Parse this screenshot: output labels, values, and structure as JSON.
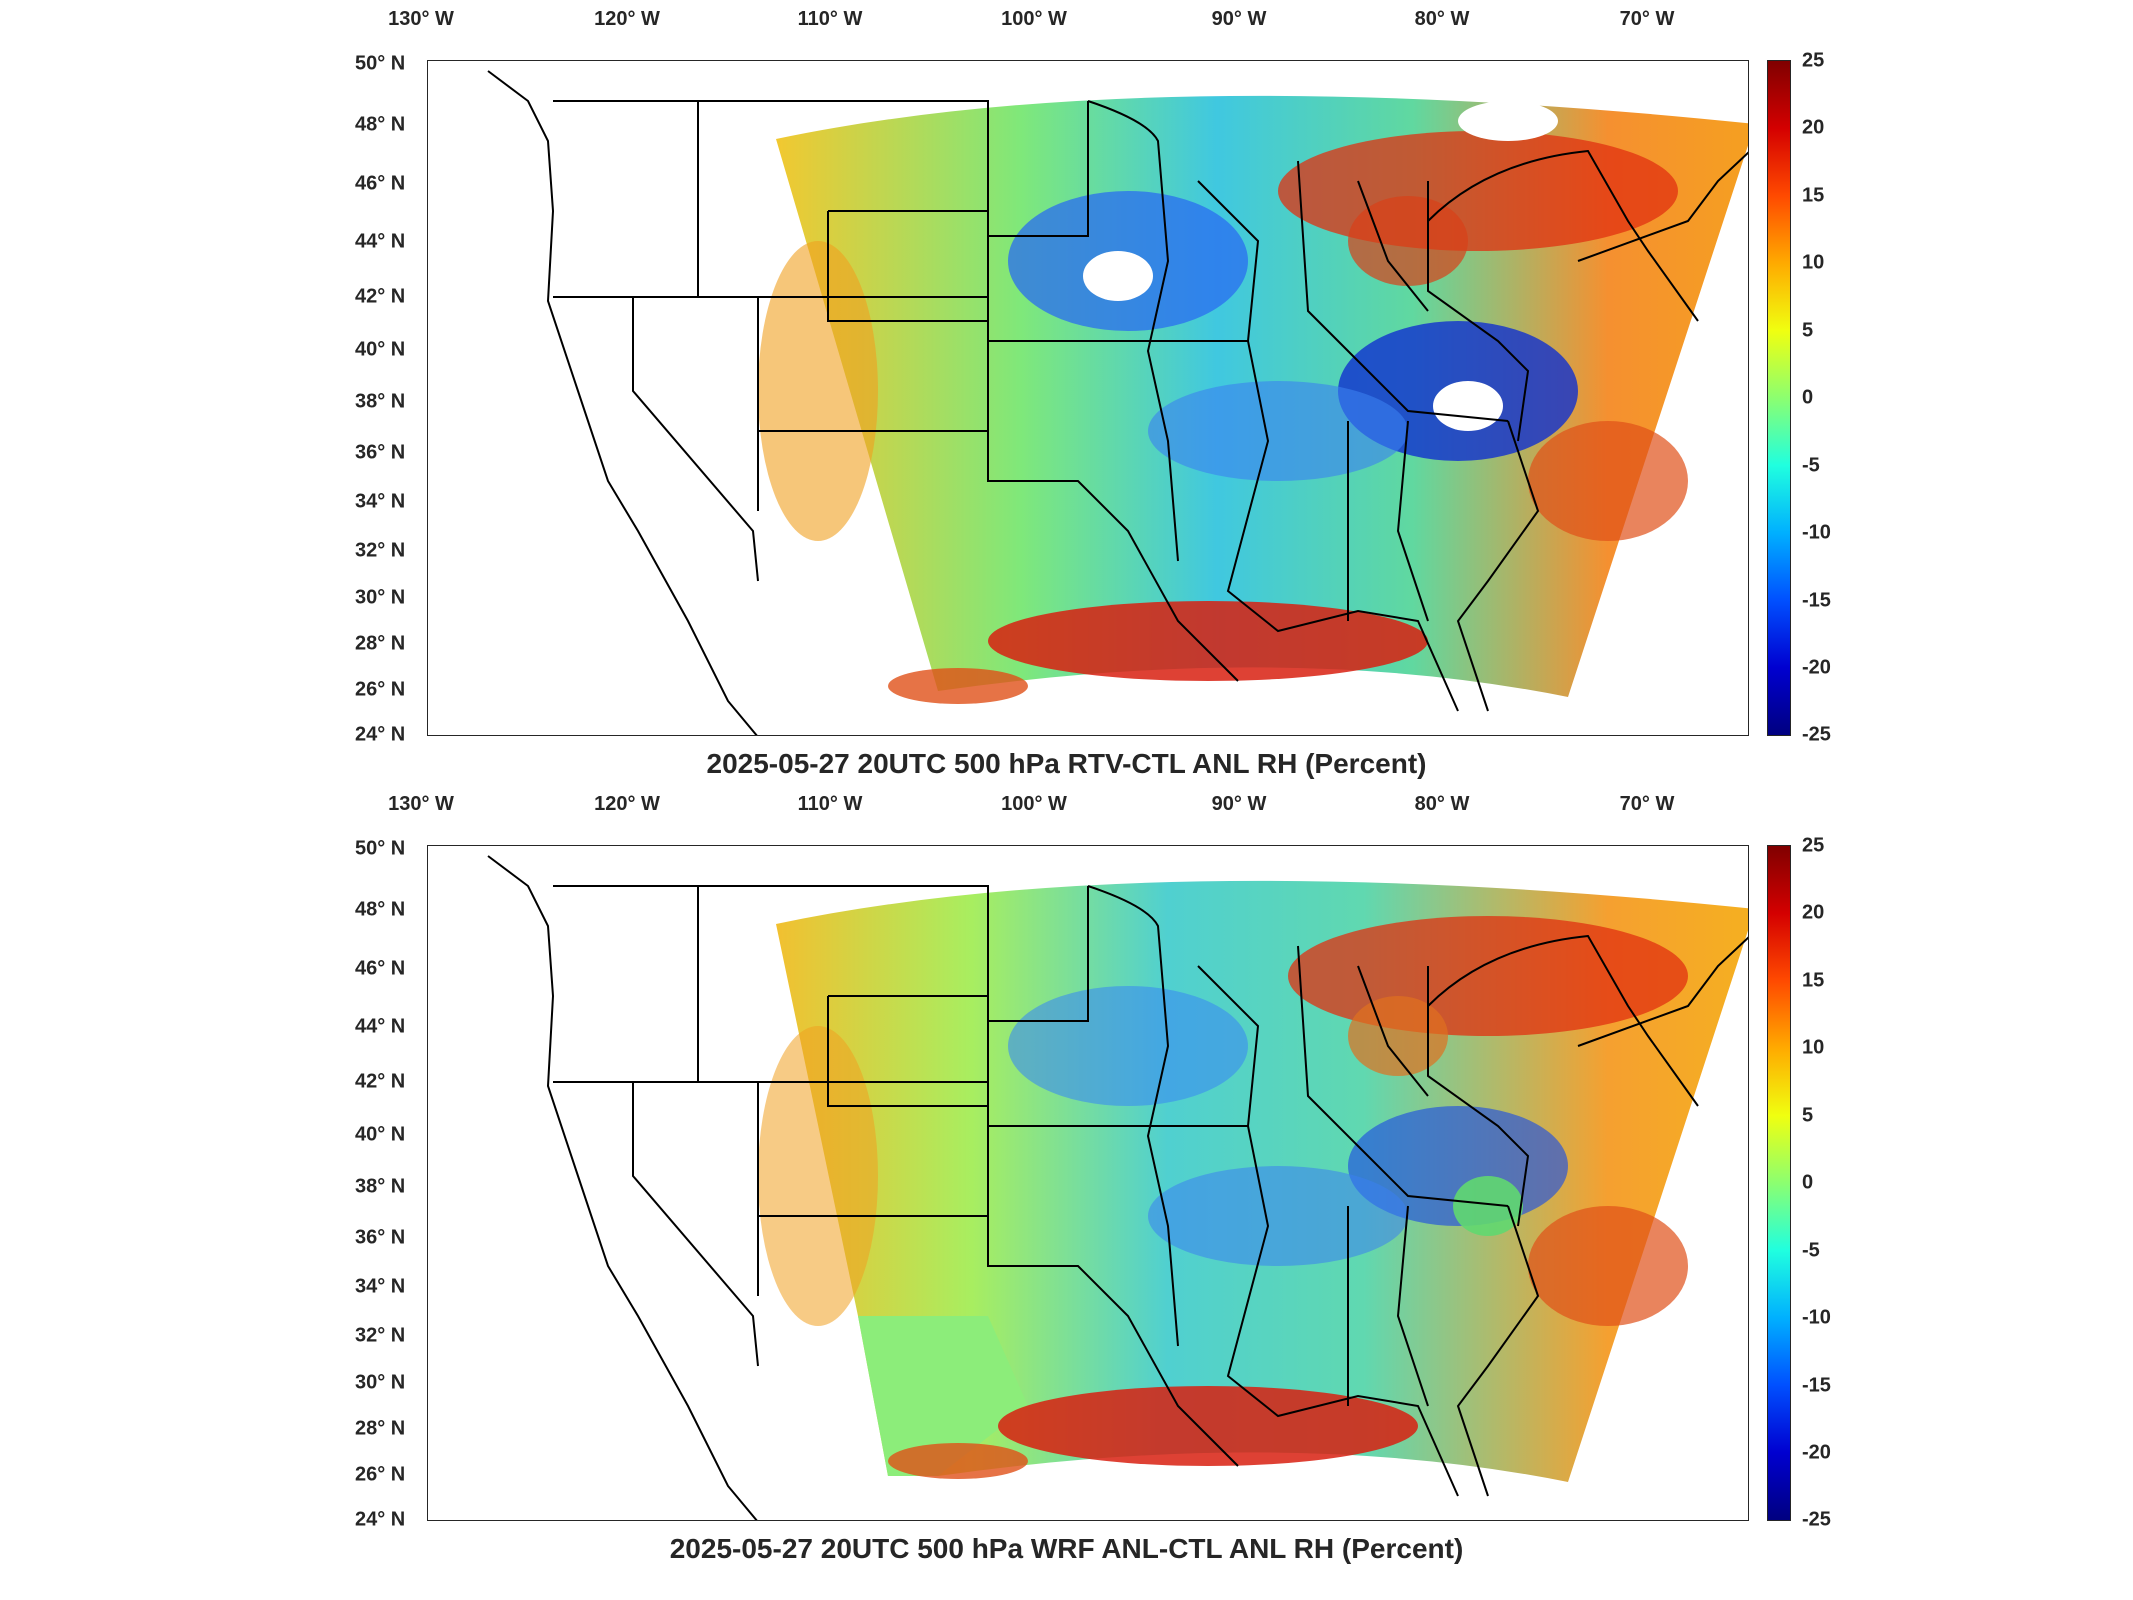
{
  "panels": [
    {
      "title": "2025-05-27 20UTC 500 hPa RTV-CTL ANL RH (Percent)",
      "lon_labels": [
        "130° W",
        "120° W",
        "110° W",
        "100° W",
        "90° W",
        "80° W",
        "70° W"
      ],
      "lat_labels": [
        "50° N",
        "48° N",
        "46° N",
        "44° N",
        "42° N",
        "40° N",
        "38° N",
        "36° N",
        "34° N",
        "32° N",
        "30° N",
        "28° N",
        "26° N",
        "24° N"
      ],
      "colorbar_ticks": [
        "25",
        "20",
        "15",
        "10",
        "5",
        "0",
        "-5",
        "-10",
        "-15",
        "-20",
        "-25"
      ]
    },
    {
      "title": "2025-05-27 20UTC 500 hPa WRF ANL-CTL ANL RH (Percent)",
      "lon_labels": [
        "130° W",
        "120° W",
        "110° W",
        "100° W",
        "90° W",
        "80° W",
        "70° W"
      ],
      "lat_labels": [
        "50° N",
        "48° N",
        "46° N",
        "44° N",
        "42° N",
        "40° N",
        "38° N",
        "36° N",
        "34° N",
        "32° N",
        "30° N",
        "28° N",
        "26° N",
        "24° N"
      ],
      "colorbar_ticks": [
        "25",
        "20",
        "15",
        "10",
        "5",
        "0",
        "-5",
        "-10",
        "-15",
        "-20",
        "-25"
      ]
    }
  ],
  "colors": {
    "max": "#800000",
    "zero": "#8cff70",
    "min": "#000080",
    "coast": "#000000"
  }
}
